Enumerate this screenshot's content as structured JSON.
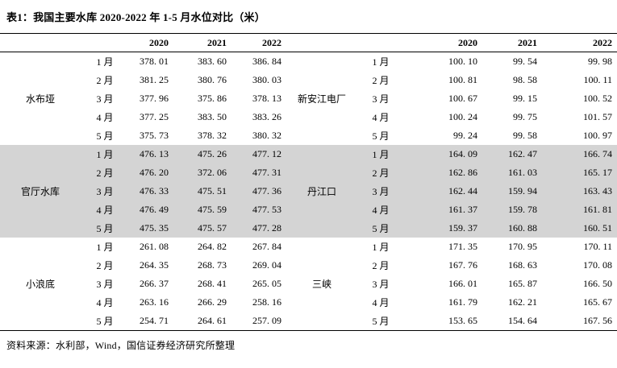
{
  "title": "表1：我国主要水库 2020-2022 年 1-5 月水位对比（米）",
  "source": "资料来源：水利部，Wind，国信证券经济研究所整理",
  "table": {
    "columns": [
      "2020",
      "2021",
      "2022"
    ],
    "shade_color": "#d4d4d4",
    "shaded_group_index": 1,
    "groups_left": [
      {
        "name": "水布垭",
        "rows": [
          {
            "month": "1 月",
            "values": [
              "378. 01",
              "383. 60",
              "386. 84"
            ]
          },
          {
            "month": "2 月",
            "values": [
              "381. 25",
              "380. 76",
              "380. 03"
            ]
          },
          {
            "month": "3 月",
            "values": [
              "377. 96",
              "375. 86",
              "378. 13"
            ]
          },
          {
            "month": "4 月",
            "values": [
              "377. 25",
              "383. 50",
              "383. 26"
            ]
          },
          {
            "month": "5 月",
            "values": [
              "375. 73",
              "378. 32",
              "380. 32"
            ]
          }
        ]
      },
      {
        "name": "官厅水库",
        "rows": [
          {
            "month": "1 月",
            "values": [
              "476. 13",
              "475. 26",
              "477. 12"
            ]
          },
          {
            "month": "2 月",
            "values": [
              "476. 20",
              "372. 06",
              "477. 31"
            ]
          },
          {
            "month": "3 月",
            "values": [
              "476. 33",
              "475. 51",
              "477. 36"
            ]
          },
          {
            "month": "4 月",
            "values": [
              "476. 49",
              "475. 59",
              "477. 53"
            ]
          },
          {
            "month": "5 月",
            "values": [
              "475. 35",
              "475. 57",
              "477. 28"
            ]
          }
        ]
      },
      {
        "name": "小浪底",
        "rows": [
          {
            "month": "1 月",
            "values": [
              "261. 08",
              "264. 82",
              "267. 84"
            ]
          },
          {
            "month": "2 月",
            "values": [
              "264. 35",
              "268. 73",
              "269. 04"
            ]
          },
          {
            "month": "3 月",
            "values": [
              "266. 37",
              "268. 41",
              "265. 05"
            ]
          },
          {
            "month": "4 月",
            "values": [
              "263. 16",
              "266. 29",
              "258. 16"
            ]
          },
          {
            "month": "5 月",
            "values": [
              "254. 71",
              "264. 61",
              "257. 09"
            ]
          }
        ]
      }
    ],
    "groups_right": [
      {
        "name": "新安江电厂",
        "rows": [
          {
            "month": "1 月",
            "values": [
              "100. 10",
              "99. 54",
              "99. 98"
            ]
          },
          {
            "month": "2 月",
            "values": [
              "100. 81",
              "98. 58",
              "100. 11"
            ]
          },
          {
            "month": "3 月",
            "values": [
              "100. 67",
              "99. 15",
              "100. 52"
            ]
          },
          {
            "month": "4 月",
            "values": [
              "100. 24",
              "99. 75",
              "101. 57"
            ]
          },
          {
            "month": "5 月",
            "values": [
              "99. 24",
              "99. 58",
              "100. 97"
            ]
          }
        ]
      },
      {
        "name": "丹江口",
        "rows": [
          {
            "month": "1 月",
            "values": [
              "164. 09",
              "162. 47",
              "166. 74"
            ]
          },
          {
            "month": "2 月",
            "values": [
              "162. 86",
              "161. 03",
              "165. 17"
            ]
          },
          {
            "month": "3 月",
            "values": [
              "162. 44",
              "159. 94",
              "163. 43"
            ]
          },
          {
            "month": "4 月",
            "values": [
              "161. 37",
              "159. 78",
              "161. 81"
            ]
          },
          {
            "month": "5 月",
            "values": [
              "159. 37",
              "160. 88",
              "160. 51"
            ]
          }
        ]
      },
      {
        "name": "三峡",
        "rows": [
          {
            "month": "1 月",
            "values": [
              "171. 35",
              "170. 95",
              "170. 11"
            ]
          },
          {
            "month": "2 月",
            "values": [
              "167. 76",
              "168. 63",
              "170. 08"
            ]
          },
          {
            "month": "3 月",
            "values": [
              "166. 01",
              "165. 87",
              "166. 50"
            ]
          },
          {
            "month": "4 月",
            "values": [
              "161. 79",
              "162. 21",
              "165. 67"
            ]
          },
          {
            "month": "5 月",
            "values": [
              "153. 65",
              "154. 64",
              "167. 56"
            ]
          }
        ]
      }
    ]
  }
}
